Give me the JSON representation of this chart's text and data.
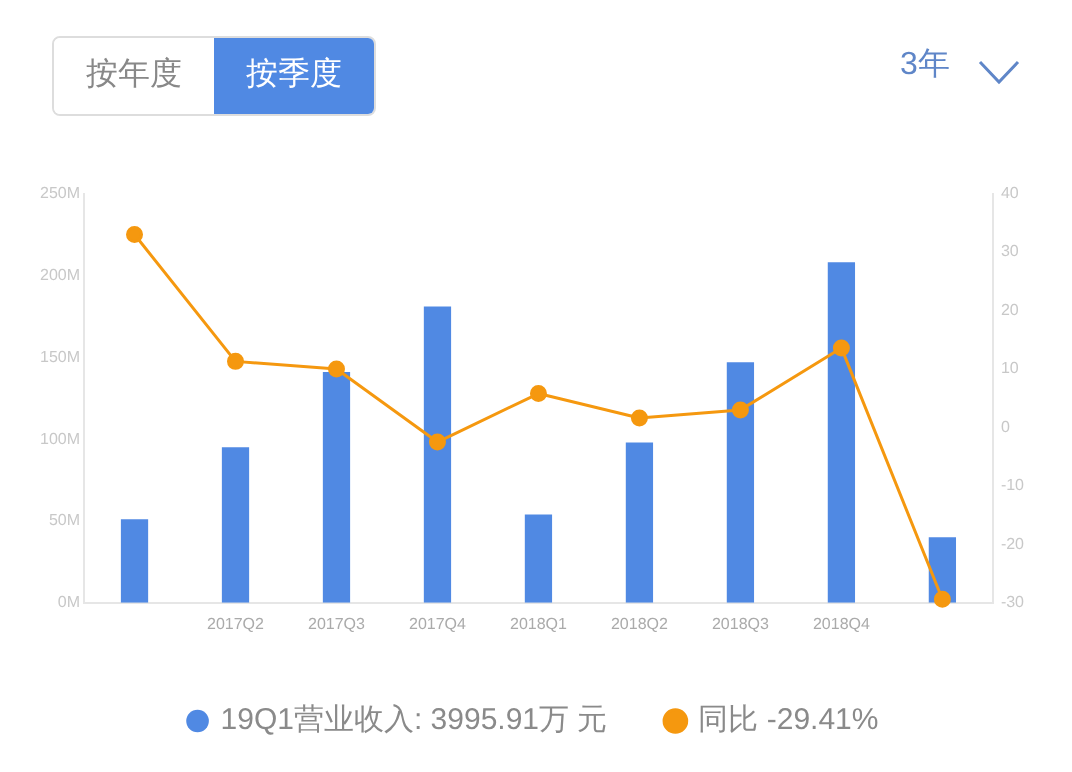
{
  "chart_data": {
    "type": "bar",
    "categories": [
      null,
      "2017Q2",
      "2017Q3",
      "2017Q4",
      "2018Q1",
      "2018Q2",
      "2018Q3",
      "2018Q4",
      null
    ],
    "series": [
      {
        "name": "19Q1营业收入: 3995.91万 元",
        "color": "#5089e3",
        "values": [
          51,
          95,
          141,
          181,
          54,
          98,
          147,
          208,
          40
        ]
      },
      {
        "name": "同比 -29.41%",
        "type": "line",
        "axis": "y2",
        "color": "#f5980f",
        "values": [
          33,
          11.3,
          10,
          -2.5,
          5.8,
          1.6,
          3,
          13.6,
          -29.4
        ]
      }
    ],
    "ylim": [
      0,
      250
    ],
    "yticks": [
      {
        "value": 0,
        "label": "0M"
      },
      {
        "value": 50,
        "label": "50M"
      },
      {
        "value": 100,
        "label": "100M"
      },
      {
        "value": 150,
        "label": "150M"
      },
      {
        "value": 200,
        "label": "200M"
      },
      {
        "value": 250,
        "label": "250M"
      }
    ],
    "y2lim": [
      -30,
      40
    ],
    "y2ticks": [
      -30,
      -20,
      -10,
      0,
      10,
      20,
      30,
      40
    ],
    "marker": "circle",
    "legend": "bottom",
    "grid": false,
    "annotations": [
      "按年度",
      "按季度",
      "3年"
    ]
  }
}
